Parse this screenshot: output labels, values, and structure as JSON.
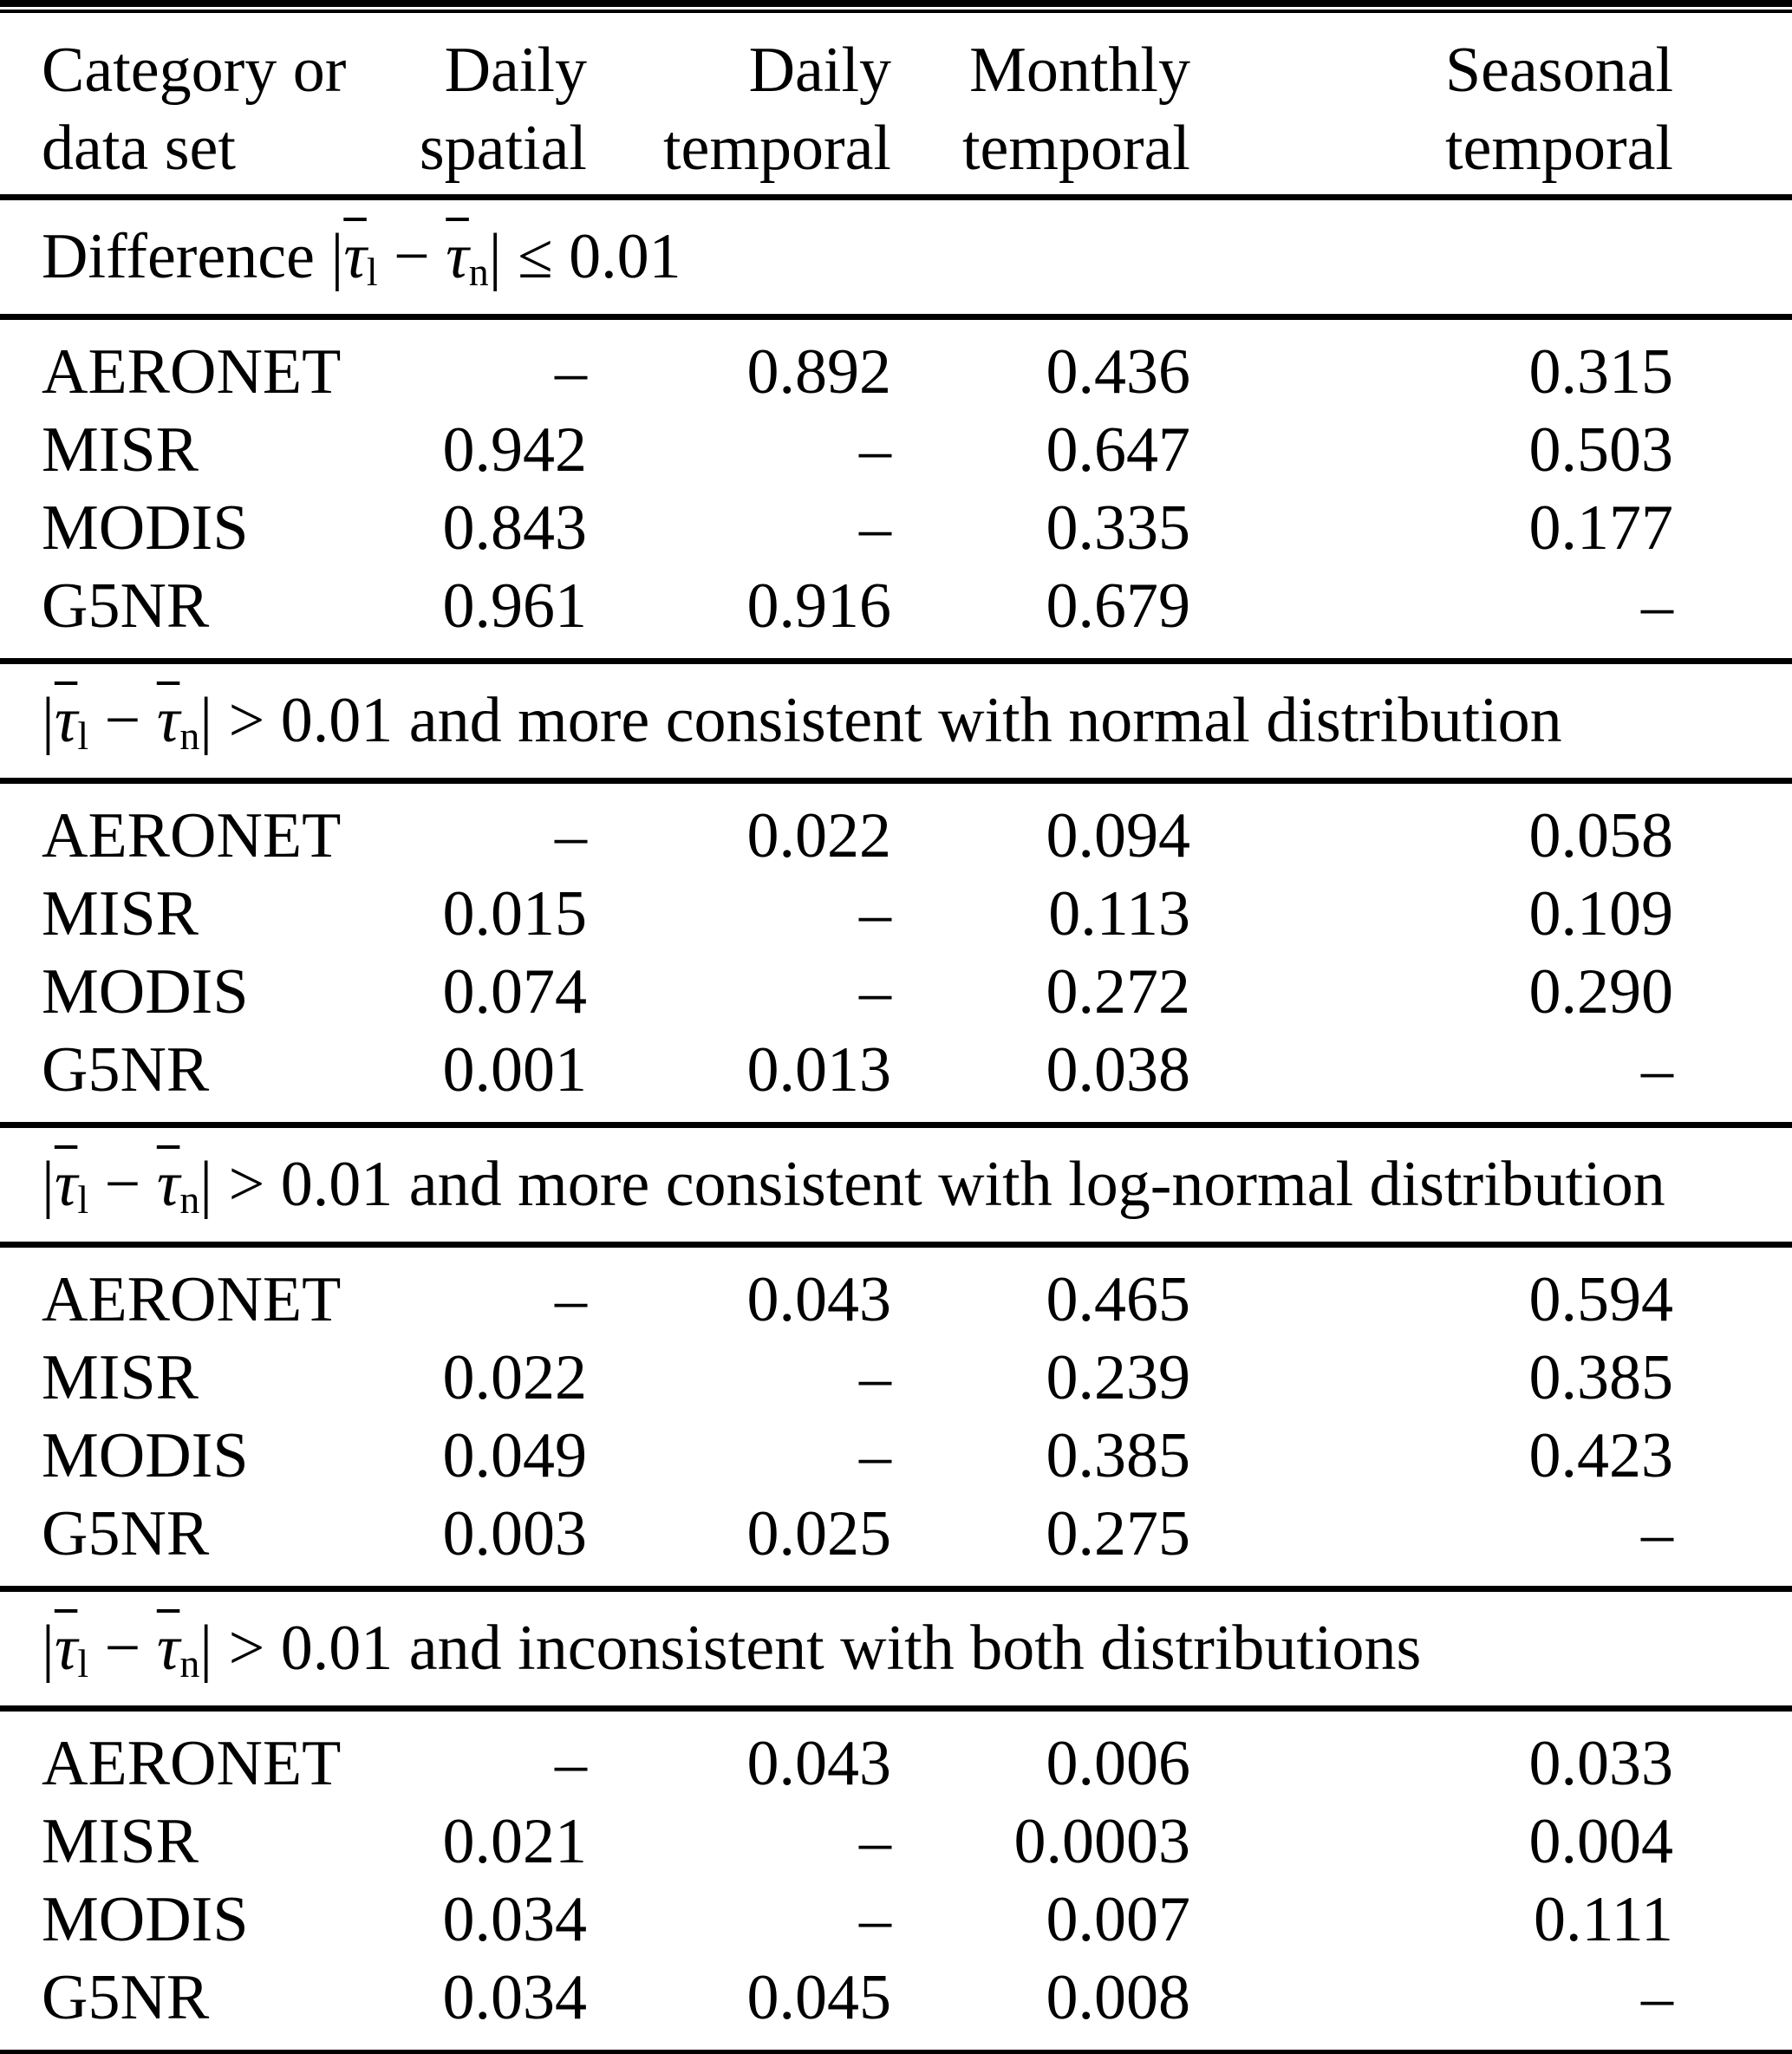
{
  "colors": {
    "background": "#ffffff",
    "text": "#000000",
    "rule": "#000000"
  },
  "table": {
    "header": {
      "cols": [
        {
          "line1": "Category or",
          "line2": "data set"
        },
        {
          "line1": "Daily",
          "line2": "spatial"
        },
        {
          "line1": "Daily",
          "line2": "temporal"
        },
        {
          "line1": "Monthly",
          "line2": "temporal"
        },
        {
          "line1": "Seasonal",
          "line2": "temporal"
        }
      ]
    },
    "formula": {
      "abs": "|",
      "tau": "τ",
      "sub_left": "l",
      "minus": " − ",
      "sub_right": "n"
    },
    "sections": [
      {
        "title_prefix": "Difference ",
        "title_rest": " ≤ 0.01",
        "rows": [
          {
            "label": "AERONET",
            "values": [
              "–",
              "0.892",
              "0.436",
              "0.315"
            ]
          },
          {
            "label": "MISR",
            "values": [
              "0.942",
              "–",
              "0.647",
              "0.503"
            ]
          },
          {
            "label": "MODIS",
            "values": [
              "0.843",
              "–",
              "0.335",
              "0.177"
            ]
          },
          {
            "label": "G5NR",
            "values": [
              "0.961",
              "0.916",
              "0.679",
              "–"
            ]
          }
        ]
      },
      {
        "title_prefix": "",
        "title_rest": " > 0.01 and more consistent with normal distribution",
        "rows": [
          {
            "label": "AERONET",
            "values": [
              "–",
              "0.022",
              "0.094",
              "0.058"
            ]
          },
          {
            "label": "MISR",
            "values": [
              "0.015",
              "–",
              "0.113",
              "0.109"
            ]
          },
          {
            "label": "MODIS",
            "values": [
              "0.074",
              "–",
              "0.272",
              "0.290"
            ]
          },
          {
            "label": "G5NR",
            "values": [
              "0.001",
              "0.013",
              "0.038",
              "–"
            ]
          }
        ]
      },
      {
        "title_prefix": "",
        "title_rest": " > 0.01 and more consistent with log-normal distribution",
        "rows": [
          {
            "label": "AERONET",
            "values": [
              "–",
              "0.043",
              "0.465",
              "0.594"
            ]
          },
          {
            "label": "MISR",
            "values": [
              "0.022",
              "–",
              "0.239",
              "0.385"
            ]
          },
          {
            "label": "MODIS",
            "values": [
              "0.049",
              "–",
              "0.385",
              "0.423"
            ]
          },
          {
            "label": "G5NR",
            "values": [
              "0.003",
              "0.025",
              "0.275",
              "–"
            ]
          }
        ]
      },
      {
        "title_prefix": "",
        "title_rest": " > 0.01 and inconsistent with both distributions",
        "rows": [
          {
            "label": "AERONET",
            "values": [
              "–",
              "0.043",
              "0.006",
              "0.033"
            ]
          },
          {
            "label": "MISR",
            "values": [
              "0.021",
              "–",
              "0.0003",
              "0.004"
            ]
          },
          {
            "label": "MODIS",
            "values": [
              "0.034",
              "–",
              "0.007",
              "0.111"
            ]
          },
          {
            "label": "G5NR",
            "values": [
              "0.034",
              "0.045",
              "0.008",
              "–"
            ]
          }
        ]
      }
    ]
  }
}
